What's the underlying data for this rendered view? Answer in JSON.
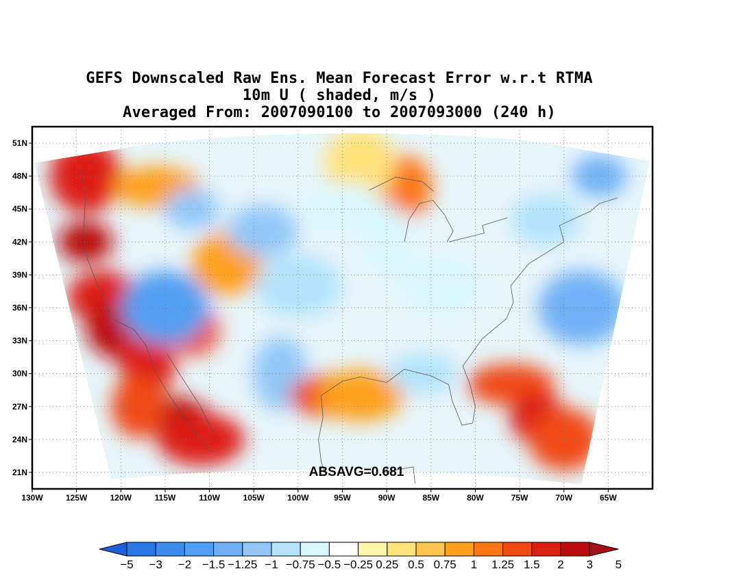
{
  "title": {
    "line1": "GEFS Downscaled Raw Ens. Mean Forecast Error w.r.t RTMA",
    "line2": "10m U ( shaded, m/s )",
    "line3": "Averaged From: 2007090100 to 2007093000 (240 h)"
  },
  "map": {
    "lon_range": [
      -130,
      -60
    ],
    "lat_range": [
      19.5,
      52.5
    ],
    "lon_ticks": [
      {
        "value": -130,
        "label": "130W"
      },
      {
        "value": -125,
        "label": "125W"
      },
      {
        "value": -120,
        "label": "120W"
      },
      {
        "value": -115,
        "label": "115W"
      },
      {
        "value": -110,
        "label": "110W"
      },
      {
        "value": -105,
        "label": "105W"
      },
      {
        "value": -100,
        "label": "100W"
      },
      {
        "value": -95,
        "label": "95W"
      },
      {
        "value": -90,
        "label": "90W"
      },
      {
        "value": -85,
        "label": "85W"
      },
      {
        "value": -80,
        "label": "80W"
      },
      {
        "value": -75,
        "label": "75W"
      },
      {
        "value": -70,
        "label": "70W"
      },
      {
        "value": -65,
        "label": "65W"
      }
    ],
    "lat_ticks": [
      {
        "value": 21,
        "label": "21N"
      },
      {
        "value": 24,
        "label": "24N"
      },
      {
        "value": 27,
        "label": "27N"
      },
      {
        "value": 30,
        "label": "30N"
      },
      {
        "value": 33,
        "label": "33N"
      },
      {
        "value": 36,
        "label": "36N"
      },
      {
        "value": 39,
        "label": "39N"
      },
      {
        "value": 42,
        "label": "42N"
      },
      {
        "value": 45,
        "label": "45N"
      },
      {
        "value": 48,
        "label": "48N"
      },
      {
        "value": 51,
        "label": "51N"
      }
    ],
    "grid": "dotted",
    "annotation": "ABSAVG=0.681",
    "field_regions": [
      {
        "lon": -124,
        "lat": 42,
        "value": 3
      },
      {
        "lon": -122,
        "lat": 37,
        "value": 2
      },
      {
        "lon": -119,
        "lat": 34,
        "value": 3
      },
      {
        "lon": -117,
        "lat": 31,
        "value": 2
      },
      {
        "lon": -114,
        "lat": 26,
        "value": 3
      },
      {
        "lon": -111,
        "lat": 24,
        "value": 2
      },
      {
        "lon": -118,
        "lat": 27,
        "value": 1.5
      },
      {
        "lon": -124,
        "lat": 48,
        "value": 2
      },
      {
        "lon": -116,
        "lat": 47,
        "value": 1
      },
      {
        "lon": -112,
        "lat": 34,
        "value": 1.5
      },
      {
        "lon": -108,
        "lat": 40,
        "value": 1
      },
      {
        "lon": -115,
        "lat": 36,
        "value": -1.5
      },
      {
        "lon": -112,
        "lat": 45,
        "value": -1
      },
      {
        "lon": -104,
        "lat": 43,
        "value": -1
      },
      {
        "lon": -100,
        "lat": 38,
        "value": -0.75
      },
      {
        "lon": -102,
        "lat": 30,
        "value": -1
      },
      {
        "lon": -97,
        "lat": 28,
        "value": 1.5
      },
      {
        "lon": -93,
        "lat": 28,
        "value": 1
      },
      {
        "lon": -88,
        "lat": 47,
        "value": 1.25
      },
      {
        "lon": -93,
        "lat": 49,
        "value": 0.5
      },
      {
        "lon": -76,
        "lat": 29,
        "value": 1.5
      },
      {
        "lon": -73,
        "lat": 26,
        "value": 2
      },
      {
        "lon": -70,
        "lat": 24,
        "value": 1.5
      },
      {
        "lon": -68,
        "lat": 36,
        "value": -1.25
      },
      {
        "lon": -66,
        "lat": 48,
        "value": -1.25
      },
      {
        "lon": -72,
        "lat": 44,
        "value": -0.75
      },
      {
        "lon": -84,
        "lat": 38,
        "value": -0.5
      },
      {
        "lon": -90,
        "lat": 42,
        "value": -0.5
      },
      {
        "lon": -86,
        "lat": 30,
        "value": -0.75
      },
      {
        "lon": -95,
        "lat": 45,
        "value": -0.5
      }
    ]
  },
  "colorbar": {
    "colors": [
      "#1e5fdc",
      "#2a76e6",
      "#3c8ced",
      "#519ff2",
      "#6fb0f5",
      "#92c7f8",
      "#b4e3fb",
      "#d9f7fd",
      "#ffffff",
      "#fff6a8",
      "#ffe27a",
      "#fec44f",
      "#fea01b",
      "#fd7616",
      "#f04a12",
      "#dd1f12",
      "#bb0d0f",
      "#a50f15"
    ],
    "labels": [
      "-5",
      "-3",
      "-2",
      "-1.5",
      "-1.25",
      "-1",
      "-0.75",
      "-0.5",
      "-0.25",
      "0.25",
      "0.5",
      "0.75",
      "1",
      "1.25",
      "1.5",
      "2",
      "3",
      "5"
    ]
  }
}
